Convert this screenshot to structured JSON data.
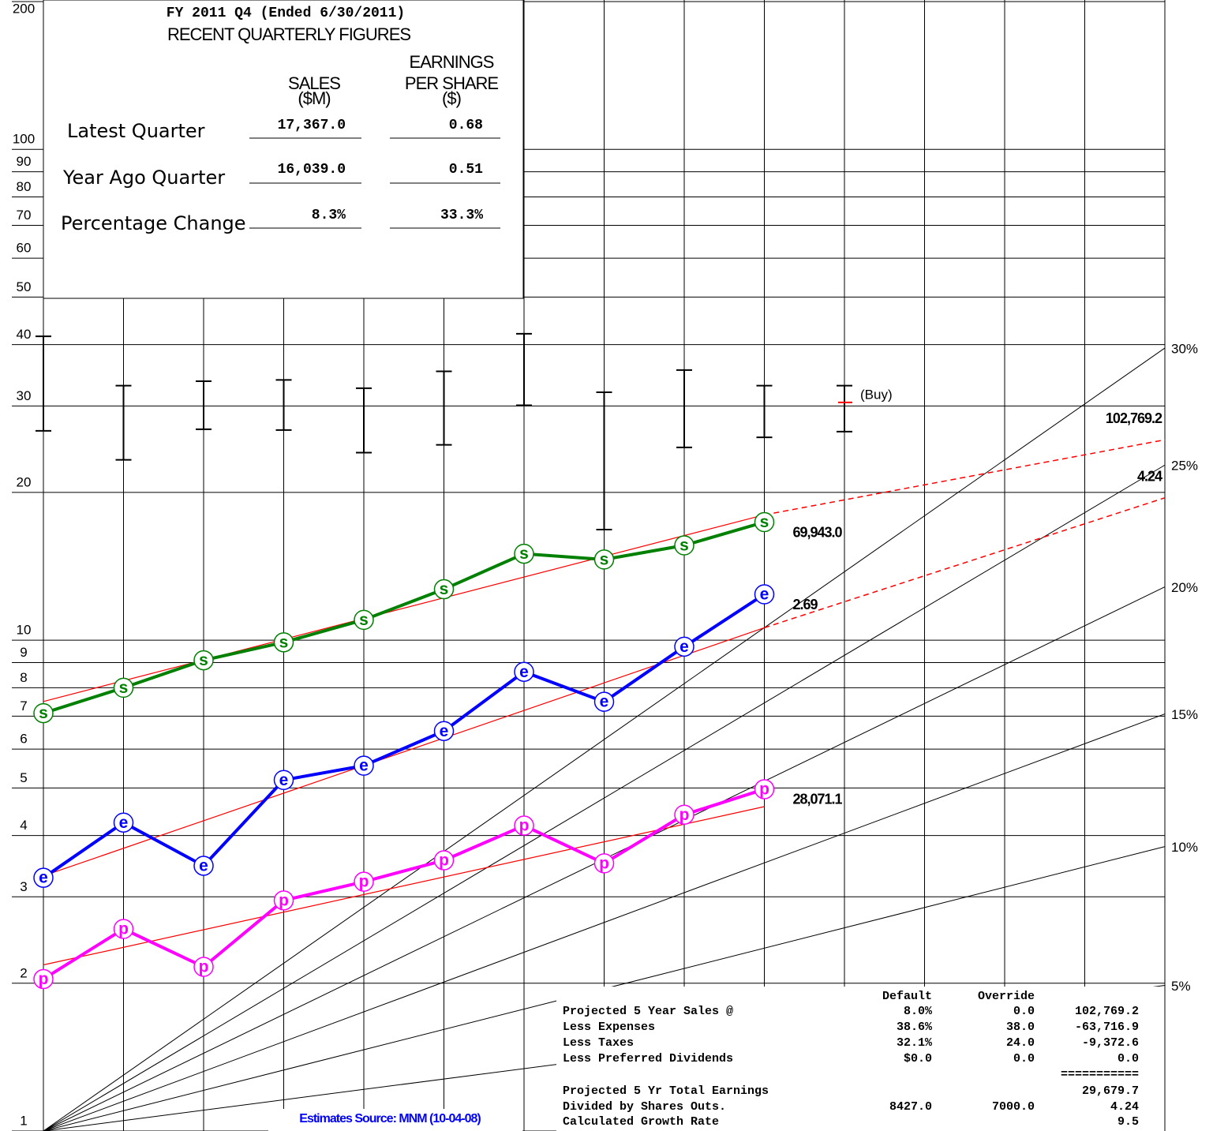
{
  "chart_data": {
    "type": "line",
    "log_scale": true,
    "ylim": [
      1,
      200
    ],
    "yticks": [
      1,
      2,
      3,
      4,
      5,
      6,
      7,
      8,
      9,
      10,
      20,
      30,
      40,
      50,
      60,
      70,
      80,
      90,
      100,
      200
    ],
    "xlim": [
      0,
      14
    ],
    "xticks": [
      0,
      1,
      2,
      3,
      4,
      5,
      6,
      7,
      8,
      9,
      10,
      11,
      12,
      13,
      14
    ],
    "grid": true,
    "series": [
      {
        "name": "s",
        "color": "#008000",
        "values": [
          7.1,
          8.0,
          9.1,
          9.9,
          11.0,
          12.7,
          15.0,
          14.6,
          15.6,
          17.4
        ],
        "end_label": "69,943.0"
      },
      {
        "name": "e",
        "color": "#0000ff",
        "values": [
          3.28,
          4.25,
          3.47,
          5.19,
          5.55,
          6.53,
          8.62,
          7.49,
          9.7,
          12.4
        ],
        "end_label": "2.69"
      },
      {
        "name": "p",
        "color": "#ff00ff",
        "values": [
          2.04,
          2.58,
          2.16,
          2.95,
          3.22,
          3.56,
          4.19,
          3.51,
          4.41,
          4.97
        ],
        "end_label": "28,071.1"
      }
    ],
    "trend_lines": [
      {
        "color": "#ff0000",
        "start": 7.5,
        "end": 18.0
      },
      {
        "color": "#ff0000",
        "start": 3.31,
        "end": 10.6
      },
      {
        "color": "#ff0000",
        "start": 2.18,
        "end": 4.58
      }
    ],
    "projections": [
      {
        "color": "#ff0000",
        "end": 25.6,
        "label": "102,769.2"
      },
      {
        "color": "#ff0000",
        "end": 19.5,
        "label": "4.24"
      }
    ],
    "price_bars": {
      "high": [
        41.6,
        33.0,
        33.7,
        33.9,
        32.6,
        35.3,
        42.1,
        32.0,
        35.5,
        33.0,
        33.0
      ],
      "low": [
        26.7,
        23.3,
        26.9,
        26.8,
        24.1,
        25.0,
        30.1,
        16.8,
        24.7,
        25.9,
        26.6
      ]
    },
    "buy": {
      "label": "(Buy)",
      "value": 30.5,
      "color": "#ff0000"
    },
    "growth_rates": [
      {
        "value": 30,
        "label": "30%"
      },
      {
        "value": 25,
        "label": "25%"
      },
      {
        "value": 20,
        "label": "20%"
      },
      {
        "value": 15,
        "label": "15%"
      },
      {
        "value": 10,
        "label": "10%"
      },
      {
        "value": 5,
        "label": "5%"
      }
    ],
    "source": "Estimates Source: MNM  (10-04-08)",
    "quarterly": {
      "title": "FY 2011 Q4  (Ended 6/30/2011)",
      "subtitle": "RECENT QUARTERLY FIGURES",
      "sales_header": [
        "SALES",
        "($M)"
      ],
      "eps_header": [
        "EARNINGS",
        "PER SHARE",
        "($)"
      ],
      "rows": [
        {
          "label": "Latest Quarter",
          "sales": "17,367.0",
          "eps": "0.68"
        },
        {
          "label": "Year Ago Quarter",
          "sales": "16,039.0",
          "eps": "0.51"
        },
        {
          "label": "Percentage Change",
          "sales": "8.3%",
          "eps": "33.3%"
        }
      ]
    },
    "projection_table": {
      "header": [
        "Default",
        "Override"
      ],
      "rows": [
        {
          "label": "Projected 5 Year Sales @",
          "default": "8.0%",
          "override": "0.0",
          "value": "102,769.2"
        },
        {
          "label": "Less Expenses",
          "default": "38.6%",
          "override": "38.0",
          "value": "-63,716.9"
        },
        {
          "label": "Less Taxes",
          "default": "32.1%",
          "override": "24.0",
          "value": "-9,372.6"
        },
        {
          "label": "Less Preferred Dividends",
          "default": "$0.0",
          "override": "0.0",
          "value": "0.0"
        },
        {
          "value": "==========="
        },
        {
          "label": "Projected 5 Yr Total Earnings",
          "value": "29,679.7"
        },
        {
          "label": "Divided by Shares Outs.",
          "default": "8427.0",
          "override": "7000.0",
          "value": "4.24"
        },
        {
          "label": "Calculated Growth Rate",
          "value": "9.5"
        }
      ]
    }
  }
}
